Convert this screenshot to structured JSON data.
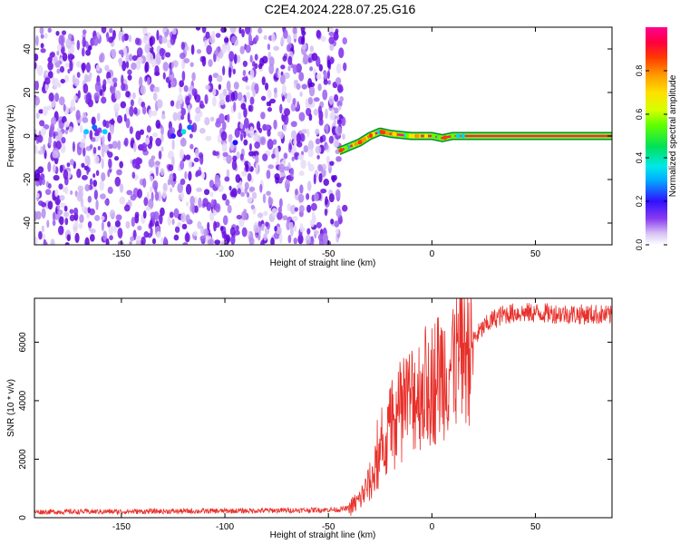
{
  "title": "C2E4.2024.228.07.25.G16",
  "chart_data": [
    {
      "type": "heatmap",
      "xlabel": "Height of straight line (km)",
      "ylabel": "Frequency (Hz)",
      "xlim": [
        -192,
        87
      ],
      "ylim": [
        -50,
        50
      ],
      "xticks": [
        -150,
        -100,
        -50,
        0,
        50
      ],
      "yticks": [
        -40,
        -20,
        0,
        20,
        40
      ],
      "colorbar": {
        "label": "Normalized spectral amplitude",
        "range": [
          0,
          1
        ],
        "ticks": [
          0.0,
          0.2,
          0.4,
          0.6,
          0.8
        ]
      },
      "description_points": {
        "noise_region_x": [
          -192,
          -42
        ],
        "signal_track": {
          "x": [
            -45,
            -40,
            -35,
            -30,
            -25,
            -20,
            -10,
            0,
            5,
            10,
            20,
            40,
            60,
            87
          ],
          "freq": [
            -7,
            -5,
            -3,
            0,
            2,
            1,
            0,
            0,
            -1,
            0,
            0,
            0,
            0,
            0
          ]
        }
      }
    },
    {
      "type": "line",
      "xlabel": "Height of straight line (km)",
      "ylabel": "SNR (10 * v/v)",
      "xlim": [
        -192,
        87
      ],
      "ylim": [
        0,
        7500
      ],
      "xticks": [
        -150,
        -100,
        -50,
        0,
        50
      ],
      "yticks": [
        0,
        2000,
        4000,
        6000
      ],
      "color": "#e8302a",
      "series": [
        {
          "x": [
            -192,
            -150,
            -100,
            -60,
            -45,
            -40,
            -35,
            -30,
            -25,
            -20,
            -15,
            -10,
            -5,
            0,
            5,
            10,
            15,
            20,
            25,
            30,
            35,
            40,
            50,
            60,
            70,
            80,
            87
          ],
          "values": [
            200,
            210,
            230,
            260,
            280,
            320,
            600,
            1200,
            2000,
            3000,
            3600,
            4100,
            4400,
            4600,
            5000,
            5300,
            5600,
            6100,
            6500,
            6800,
            6950,
            7000,
            7000,
            6980,
            6950,
            6950,
            6900
          ]
        }
      ]
    }
  ]
}
